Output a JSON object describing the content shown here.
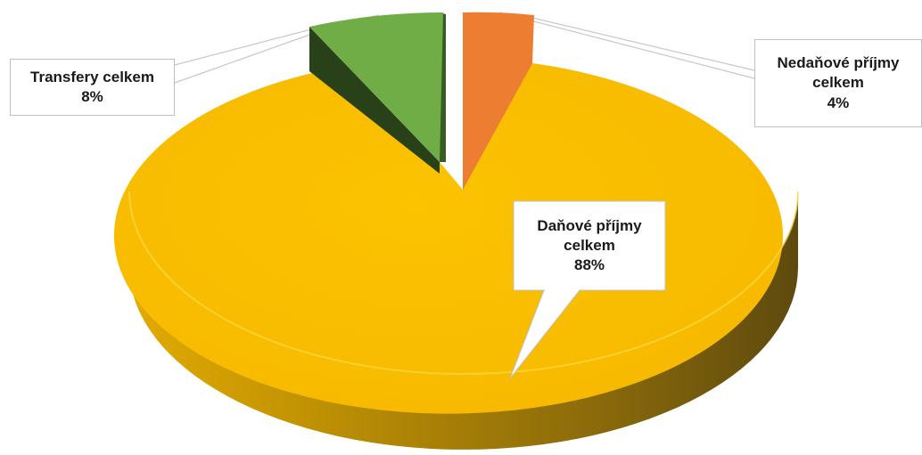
{
  "chart_data": {
    "type": "pie",
    "title": "",
    "categories": [
      "Daňové příjmy celkem",
      "Nedaňové příjmy celkem",
      "Transfery celkem"
    ],
    "values": [
      88,
      4,
      8
    ],
    "unit": "%",
    "exploded": true,
    "three_d": true,
    "legend": "none",
    "colors": {
      "Daňové příjmy celkem": "#F7BA00",
      "Nedaňové příjmy celkem": "#ED7D31",
      "Transfery celkem": "#70AD47"
    },
    "data_labels": [
      {
        "lines": [
          "Daňové příjmy",
          "celkem",
          "88%"
        ]
      },
      {
        "lines": [
          "Nedaňové příjmy",
          "celkem",
          "4%"
        ]
      },
      {
        "lines": [
          "Transfery celkem",
          "8%"
        ]
      }
    ]
  }
}
